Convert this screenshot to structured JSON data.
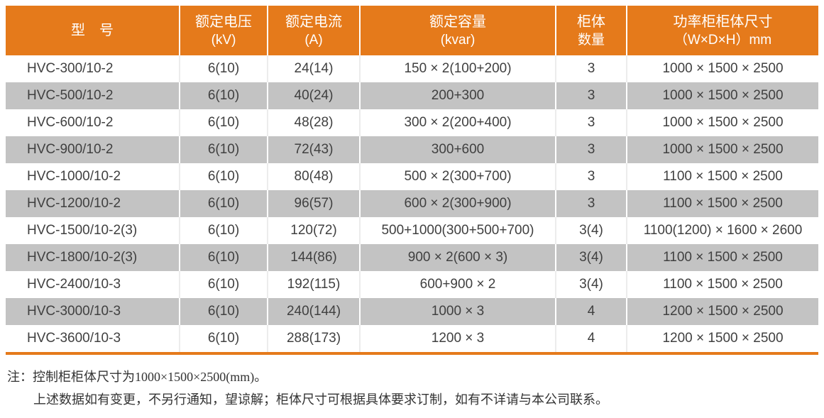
{
  "colors": {
    "accent_orange": "#E57A1B",
    "row_gray": "#C3C3C3",
    "row_white": "#FFFFFF",
    "header_text": "#FFFFFF",
    "body_text": "#404040"
  },
  "table": {
    "columns": [
      {
        "label": "型　号",
        "sub": ""
      },
      {
        "label": "额定电压",
        "sub": "(kV)"
      },
      {
        "label": "额定电流",
        "sub": "(A)"
      },
      {
        "label": "额定容量",
        "sub": "(kvar)"
      },
      {
        "label": "柜体",
        "sub": "数量"
      },
      {
        "label": "功率柜柜体尺寸",
        "sub": "（W×D×H）mm"
      }
    ],
    "rows": [
      [
        "HVC-300/10-2",
        "6(10)",
        "24(14)",
        "150 × 2(100+200)",
        "3",
        "1000 × 1500 × 2500"
      ],
      [
        "HVC-500/10-2",
        "6(10)",
        "40(24)",
        "200+300",
        "3",
        "1000 × 1500 × 2500"
      ],
      [
        "HVC-600/10-2",
        "6(10)",
        "48(28)",
        "300 × 2(200+400)",
        "3",
        "1000 × 1500 × 2500"
      ],
      [
        "HVC-900/10-2",
        "6(10)",
        "72(43)",
        "300+600",
        "3",
        "1000 × 1500 × 2500"
      ],
      [
        "HVC-1000/10-2",
        "6(10)",
        "80(48)",
        "500 × 2(300+700)",
        "3",
        "1100 × 1500 × 2500"
      ],
      [
        "HVC-1200/10-2",
        "6(10)",
        "96(57)",
        "600 × 2(300+900)",
        "3",
        "1100 × 1500 × 2500"
      ],
      [
        "HVC-1500/10-2(3)",
        "6(10)",
        "120(72)",
        "500+1000(300+500+700)",
        "3(4)",
        "1100(1200) × 1600 × 2600"
      ],
      [
        "HVC-1800/10-2(3)",
        "6(10)",
        "144(86)",
        "900 × 2(600 × 3)",
        "3(4)",
        "1100 × 1500 × 2500"
      ],
      [
        "HVC-2400/10-3",
        "6(10)",
        "192(115)",
        "600+900 × 2",
        "3(4)",
        "1100 × 1500 × 2500"
      ],
      [
        "HVC-3000/10-3",
        "6(10)",
        "240(144)",
        "1000 × 3",
        "4",
        "1200 × 1500 × 2500"
      ],
      [
        "HVC-3600/10-3",
        "6(10)",
        "288(173)",
        "1200 × 3",
        "4",
        "1200 × 1500 × 2500"
      ]
    ]
  },
  "notes": {
    "line1": "注：控制柜柜体尺寸为1000×1500×2500(mm)。",
    "line2": "上述数据如有变更，不另行通知，望谅解；柜体尺寸可根据具体要求订制，如有不详请与本公司联系。"
  }
}
